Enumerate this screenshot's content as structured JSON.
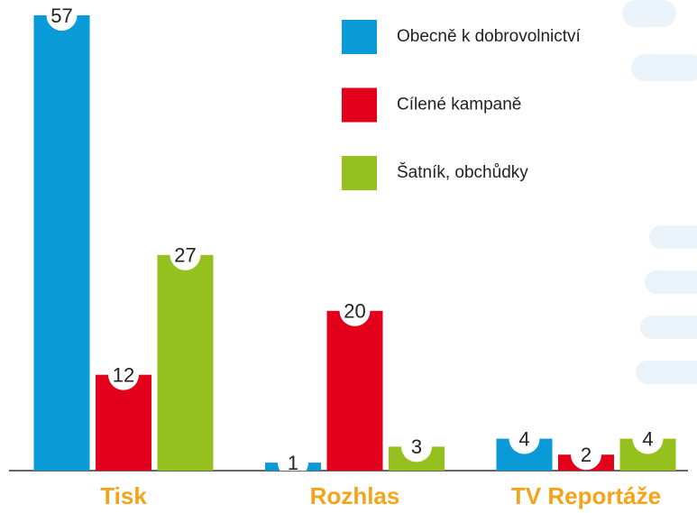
{
  "chart_data": {
    "type": "bar",
    "categories": [
      "Tisk",
      "Rozhlas",
      "TV Reportáže"
    ],
    "series": [
      {
        "name": "Obecně k dobrovolnictví",
        "color": "#0a9ad8",
        "values": [
          57,
          1,
          4
        ]
      },
      {
        "name": "Cílené kampaně",
        "color": "#e2001a",
        "values": [
          12,
          20,
          2
        ]
      },
      {
        "name": "Šatník, obchůdky",
        "color": "#95c11f",
        "values": [
          27,
          3,
          4
        ]
      }
    ],
    "legend": "top-right"
  }
}
